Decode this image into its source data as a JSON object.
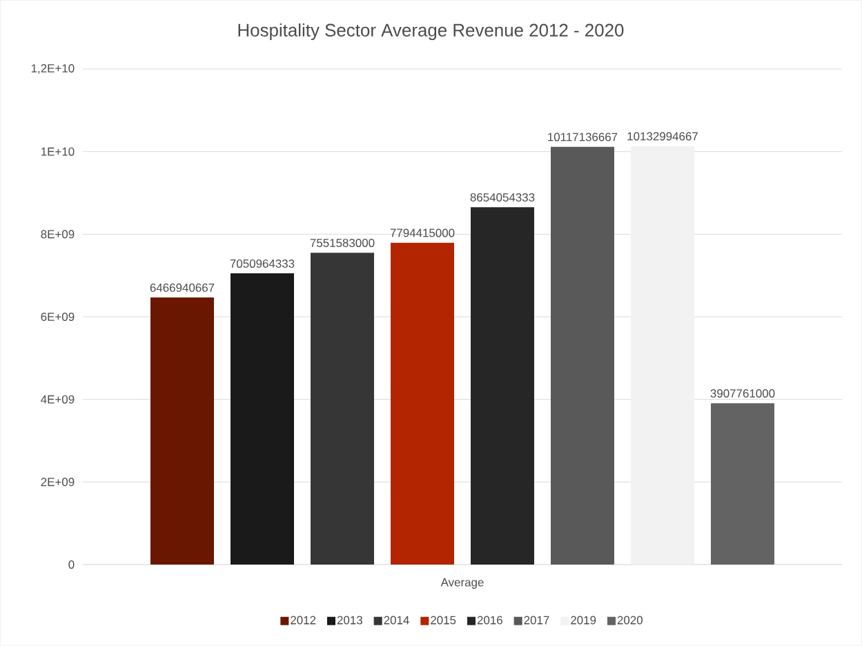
{
  "chart_data": {
    "type": "bar",
    "title": "Hospitality Sector Average Revenue 2012 - 2020",
    "categories": [
      "Average"
    ],
    "series": [
      {
        "name": "2012",
        "color": "#6a1700",
        "values": [
          6466940667
        ],
        "value_labels": [
          "6466940667"
        ]
      },
      {
        "name": "2013",
        "color": "#1a1a1a",
        "values": [
          7050964333
        ],
        "value_labels": [
          "7050964333"
        ]
      },
      {
        "name": "2014",
        "color": "#363636",
        "values": [
          7551583000
        ],
        "value_labels": [
          "7551583000"
        ]
      },
      {
        "name": "2015",
        "color": "#b22500",
        "values": [
          7794415000
        ],
        "value_labels": [
          "7794415000"
        ]
      },
      {
        "name": "2016",
        "color": "#262626",
        "values": [
          8654054333
        ],
        "value_labels": [
          "8654054333"
        ]
      },
      {
        "name": "2017",
        "color": "#595959",
        "values": [
          10117136667
        ],
        "value_labels": [
          "10117136667"
        ]
      },
      {
        "name": "2019",
        "color": "#f2f2f2",
        "values": [
          10132994667
        ],
        "value_labels": [
          "10132994667"
        ]
      },
      {
        "name": "2020",
        "color": "#636363",
        "values": [
          3907761000
        ],
        "value_labels": [
          "3907761000"
        ]
      }
    ],
    "ylim": [
      0,
      12000000000
    ],
    "yticks": [
      {
        "value": 0,
        "label": "0"
      },
      {
        "value": 2000000000,
        "label": "2E+09"
      },
      {
        "value": 4000000000,
        "label": "4E+09"
      },
      {
        "value": 6000000000,
        "label": "6E+09"
      },
      {
        "value": 8000000000,
        "label": "8E+09"
      },
      {
        "value": 10000000000,
        "label": "1E+10"
      },
      {
        "value": 12000000000,
        "label": "1,2E+10"
      }
    ],
    "grid": "y",
    "legend": "bottom"
  }
}
